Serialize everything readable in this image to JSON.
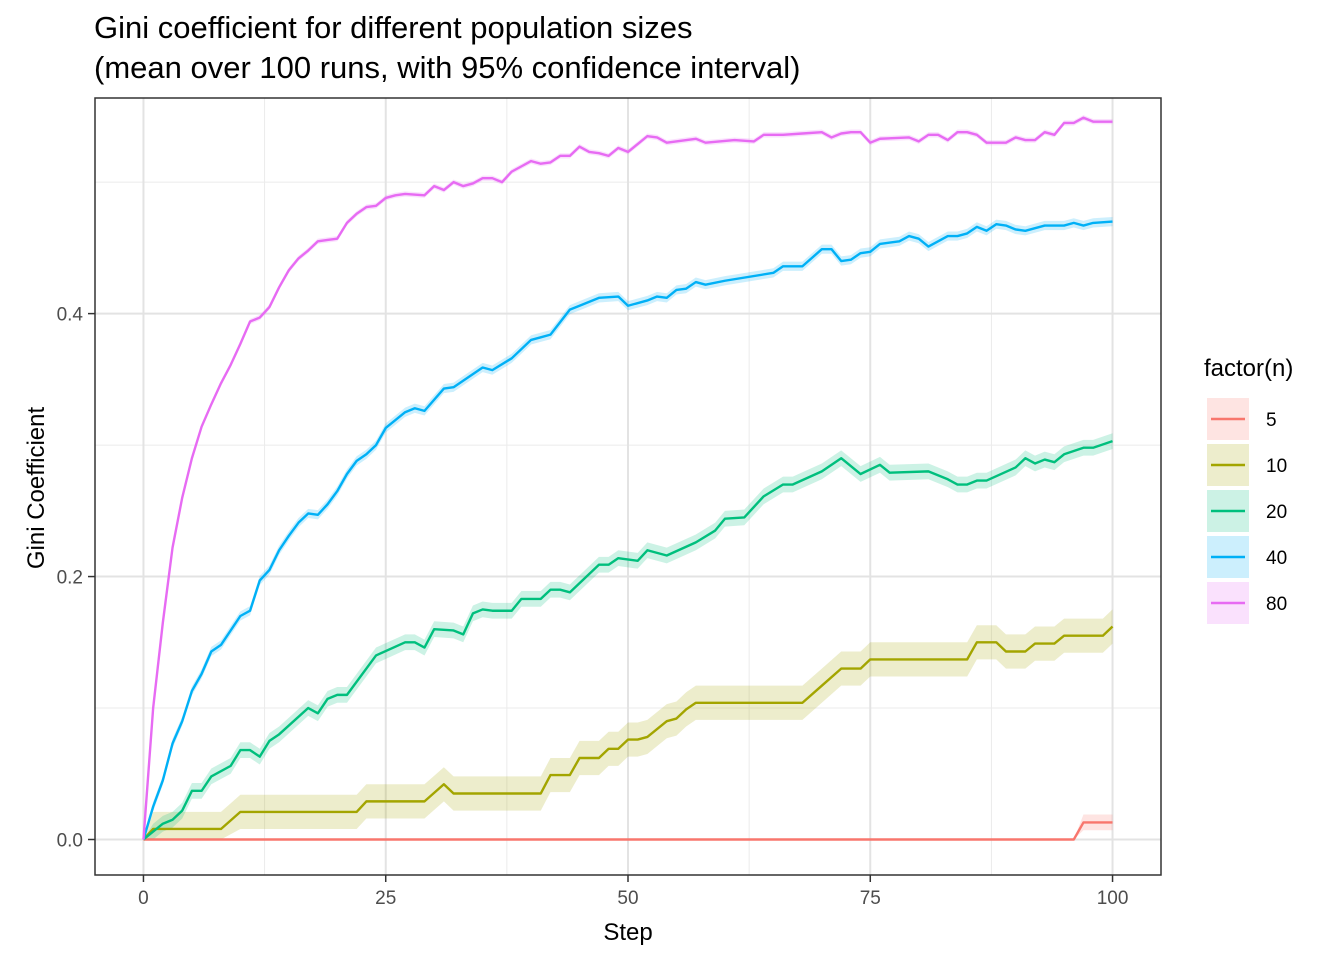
{
  "chart_data": {
    "type": "line",
    "title": "Gini coefficient for different population sizes\n(mean over 100 runs, with 95% confidence interval)",
    "xlabel": "Step",
    "ylabel": "Gini Coefficient",
    "xlim": [
      -5,
      105
    ],
    "ylim": [
      -0.027,
      0.564
    ],
    "x_ticks": [
      0,
      25,
      50,
      75,
      100
    ],
    "x_tick_labels": [
      "0",
      "25",
      "50",
      "75",
      "100"
    ],
    "y_ticks": [
      0.0,
      0.2,
      0.4
    ],
    "y_tick_labels": [
      "0.0",
      "0.2",
      "0.4"
    ],
    "y_minor_ticks": [
      0.1,
      0.3,
      0.5
    ],
    "x_minor_ticks": [
      12.5,
      37.5,
      62.5,
      87.5
    ],
    "grid": true,
    "legend_title": "factor(n)",
    "legend_position": "right",
    "series": [
      {
        "name": "5",
        "color": "#F8766D",
        "ci": 0.006,
        "points": [
          [
            0,
            0
          ],
          [
            96,
            0
          ],
          [
            97,
            0.013
          ],
          [
            100,
            0.013
          ]
        ]
      },
      {
        "name": "10",
        "color": "#A3A500",
        "ci": 0.013,
        "points": [
          [
            0,
            0
          ],
          [
            1,
            0.008
          ],
          [
            8,
            0.008
          ],
          [
            10,
            0.021
          ],
          [
            22,
            0.021
          ],
          [
            23,
            0.029
          ],
          [
            29,
            0.029
          ],
          [
            31,
            0.042
          ],
          [
            32,
            0.035
          ],
          [
            41,
            0.035
          ],
          [
            42,
            0.049
          ],
          [
            44,
            0.049
          ],
          [
            45,
            0.062
          ],
          [
            47,
            0.062
          ],
          [
            48,
            0.069
          ],
          [
            49,
            0.069
          ],
          [
            50,
            0.076
          ],
          [
            51,
            0.076
          ],
          [
            52,
            0.078
          ],
          [
            54,
            0.09
          ],
          [
            55,
            0.092
          ],
          [
            56,
            0.099
          ],
          [
            57,
            0.104
          ],
          [
            68,
            0.104
          ],
          [
            70,
            0.117
          ],
          [
            72,
            0.13
          ],
          [
            74,
            0.13
          ],
          [
            75,
            0.137
          ],
          [
            85,
            0.137
          ],
          [
            86,
            0.15
          ],
          [
            88,
            0.15
          ],
          [
            89,
            0.143
          ],
          [
            91,
            0.143
          ],
          [
            92,
            0.149
          ],
          [
            94,
            0.149
          ],
          [
            95,
            0.155
          ],
          [
            99,
            0.155
          ],
          [
            100,
            0.162
          ]
        ]
      },
      {
        "name": "20",
        "color": "#00BF7D",
        "ci": 0.006,
        "points": [
          [
            0,
            0
          ],
          [
            1,
            0.006
          ],
          [
            2,
            0.012
          ],
          [
            3,
            0.015
          ],
          [
            4,
            0.022
          ],
          [
            5,
            0.037
          ],
          [
            6,
            0.037
          ],
          [
            7,
            0.048
          ],
          [
            9,
            0.056
          ],
          [
            10,
            0.068
          ],
          [
            11,
            0.068
          ],
          [
            12,
            0.063
          ],
          [
            13,
            0.075
          ],
          [
            14,
            0.08
          ],
          [
            17,
            0.1
          ],
          [
            18,
            0.096
          ],
          [
            19,
            0.107
          ],
          [
            20,
            0.11
          ],
          [
            21,
            0.11
          ],
          [
            24,
            0.14
          ],
          [
            27,
            0.15
          ],
          [
            28,
            0.15
          ],
          [
            29,
            0.146
          ],
          [
            30,
            0.16
          ],
          [
            32,
            0.159
          ],
          [
            33,
            0.156
          ],
          [
            34,
            0.172
          ],
          [
            35,
            0.175
          ],
          [
            36,
            0.174
          ],
          [
            38,
            0.174
          ],
          [
            39,
            0.183
          ],
          [
            41,
            0.183
          ],
          [
            42,
            0.19
          ],
          [
            43,
            0.19
          ],
          [
            44,
            0.188
          ],
          [
            47,
            0.209
          ],
          [
            48,
            0.209
          ],
          [
            49,
            0.214
          ],
          [
            51,
            0.212
          ],
          [
            52,
            0.22
          ],
          [
            54,
            0.216
          ],
          [
            57,
            0.226
          ],
          [
            59,
            0.235
          ],
          [
            60,
            0.244
          ],
          [
            62,
            0.245
          ],
          [
            64,
            0.261
          ],
          [
            66,
            0.27
          ],
          [
            67,
            0.27
          ],
          [
            70,
            0.28
          ],
          [
            72,
            0.29
          ],
          [
            74,
            0.278
          ],
          [
            76,
            0.285
          ],
          [
            77,
            0.279
          ],
          [
            81,
            0.28
          ],
          [
            83,
            0.274
          ],
          [
            84,
            0.27
          ],
          [
            85,
            0.27
          ],
          [
            86,
            0.273
          ],
          [
            87,
            0.273
          ],
          [
            90,
            0.283
          ],
          [
            91,
            0.29
          ],
          [
            92,
            0.286
          ],
          [
            93,
            0.289
          ],
          [
            94,
            0.287
          ],
          [
            95,
            0.293
          ],
          [
            97,
            0.298
          ],
          [
            98,
            0.298
          ],
          [
            100,
            0.303
          ]
        ]
      },
      {
        "name": "40",
        "color": "#00B0F6",
        "ci": 0.0035,
        "points": [
          [
            0,
            0
          ],
          [
            1,
            0.025
          ],
          [
            2,
            0.045
          ],
          [
            3,
            0.073
          ],
          [
            4,
            0.09
          ],
          [
            5,
            0.113
          ],
          [
            6,
            0.126
          ],
          [
            7,
            0.143
          ],
          [
            8,
            0.148
          ],
          [
            10,
            0.17
          ],
          [
            11,
            0.174
          ],
          [
            12,
            0.197
          ],
          [
            13,
            0.205
          ],
          [
            14,
            0.22
          ],
          [
            15,
            0.231
          ],
          [
            16,
            0.241
          ],
          [
            17,
            0.248
          ],
          [
            18,
            0.247
          ],
          [
            19,
            0.255
          ],
          [
            20,
            0.265
          ],
          [
            21,
            0.278
          ],
          [
            22,
            0.288
          ],
          [
            23,
            0.293
          ],
          [
            24,
            0.3
          ],
          [
            25,
            0.313
          ],
          [
            26,
            0.319
          ],
          [
            27,
            0.325
          ],
          [
            28,
            0.328
          ],
          [
            29,
            0.326
          ],
          [
            31,
            0.343
          ],
          [
            32,
            0.344
          ],
          [
            35,
            0.359
          ],
          [
            36,
            0.357
          ],
          [
            38,
            0.366
          ],
          [
            40,
            0.38
          ],
          [
            41,
            0.382
          ],
          [
            42,
            0.384
          ],
          [
            44,
            0.403
          ],
          [
            45,
            0.406
          ],
          [
            47,
            0.412
          ],
          [
            49,
            0.413
          ],
          [
            50,
            0.406
          ],
          [
            52,
            0.41
          ],
          [
            53,
            0.413
          ],
          [
            54,
            0.412
          ],
          [
            55,
            0.418
          ],
          [
            56,
            0.419
          ],
          [
            57,
            0.424
          ],
          [
            58,
            0.422
          ],
          [
            60,
            0.425
          ],
          [
            65,
            0.431
          ],
          [
            66,
            0.436
          ],
          [
            68,
            0.436
          ],
          [
            70,
            0.449
          ],
          [
            71,
            0.449
          ],
          [
            72,
            0.44
          ],
          [
            73,
            0.441
          ],
          [
            74,
            0.446
          ],
          [
            75,
            0.447
          ],
          [
            76,
            0.453
          ],
          [
            78,
            0.455
          ],
          [
            79,
            0.459
          ],
          [
            80,
            0.457
          ],
          [
            81,
            0.451
          ],
          [
            82,
            0.455
          ],
          [
            83,
            0.459
          ],
          [
            84,
            0.459
          ],
          [
            85,
            0.461
          ],
          [
            86,
            0.466
          ],
          [
            87,
            0.463
          ],
          [
            88,
            0.468
          ],
          [
            89,
            0.467
          ],
          [
            90,
            0.464
          ],
          [
            91,
            0.463
          ],
          [
            93,
            0.467
          ],
          [
            95,
            0.467
          ],
          [
            96,
            0.469
          ],
          [
            97,
            0.467
          ],
          [
            98,
            0.469
          ],
          [
            100,
            0.47
          ]
        ]
      },
      {
        "name": "80",
        "color": "#E76BF3",
        "ci": 0.002,
        "points": [
          [
            0,
            0
          ],
          [
            1,
            0.1
          ],
          [
            2,
            0.165
          ],
          [
            3,
            0.222
          ],
          [
            4,
            0.26
          ],
          [
            5,
            0.29
          ],
          [
            6,
            0.314
          ],
          [
            7,
            0.331
          ],
          [
            8,
            0.347
          ],
          [
            9,
            0.361
          ],
          [
            10,
            0.377
          ],
          [
            11,
            0.394
          ],
          [
            12,
            0.397
          ],
          [
            13,
            0.405
          ],
          [
            14,
            0.42
          ],
          [
            15,
            0.433
          ],
          [
            16,
            0.442
          ],
          [
            17,
            0.448
          ],
          [
            18,
            0.455
          ],
          [
            19,
            0.456
          ],
          [
            20,
            0.457
          ],
          [
            21,
            0.469
          ],
          [
            22,
            0.476
          ],
          [
            23,
            0.481
          ],
          [
            24,
            0.482
          ],
          [
            25,
            0.488
          ],
          [
            26,
            0.49
          ],
          [
            27,
            0.491
          ],
          [
            29,
            0.49
          ],
          [
            30,
            0.497
          ],
          [
            31,
            0.494
          ],
          [
            32,
            0.5
          ],
          [
            33,
            0.497
          ],
          [
            34,
            0.499
          ],
          [
            35,
            0.503
          ],
          [
            36,
            0.503
          ],
          [
            37,
            0.5
          ],
          [
            38,
            0.508
          ],
          [
            39,
            0.512
          ],
          [
            40,
            0.516
          ],
          [
            41,
            0.514
          ],
          [
            42,
            0.515
          ],
          [
            43,
            0.52
          ],
          [
            44,
            0.52
          ],
          [
            45,
            0.527
          ],
          [
            46,
            0.523
          ],
          [
            47,
            0.522
          ],
          [
            48,
            0.52
          ],
          [
            49,
            0.526
          ],
          [
            50,
            0.523
          ],
          [
            51,
            0.529
          ],
          [
            52,
            0.535
          ],
          [
            53,
            0.534
          ],
          [
            54,
            0.53
          ],
          [
            57,
            0.533
          ],
          [
            58,
            0.53
          ],
          [
            61,
            0.532
          ],
          [
            63,
            0.531
          ],
          [
            64,
            0.536
          ],
          [
            66,
            0.536
          ],
          [
            68,
            0.537
          ],
          [
            70,
            0.538
          ],
          [
            71,
            0.534
          ],
          [
            72,
            0.537
          ],
          [
            73,
            0.538
          ],
          [
            74,
            0.538
          ],
          [
            75,
            0.53
          ],
          [
            76,
            0.533
          ],
          [
            79,
            0.534
          ],
          [
            80,
            0.531
          ],
          [
            81,
            0.536
          ],
          [
            82,
            0.536
          ],
          [
            83,
            0.532
          ],
          [
            84,
            0.538
          ],
          [
            85,
            0.538
          ],
          [
            86,
            0.536
          ],
          [
            87,
            0.53
          ],
          [
            89,
            0.53
          ],
          [
            90,
            0.534
          ],
          [
            91,
            0.532
          ],
          [
            92,
            0.532
          ],
          [
            93,
            0.538
          ],
          [
            94,
            0.536
          ],
          [
            95,
            0.545
          ],
          [
            96,
            0.545
          ],
          [
            97,
            0.549
          ],
          [
            98,
            0.546
          ],
          [
            100,
            0.546
          ]
        ]
      }
    ]
  }
}
